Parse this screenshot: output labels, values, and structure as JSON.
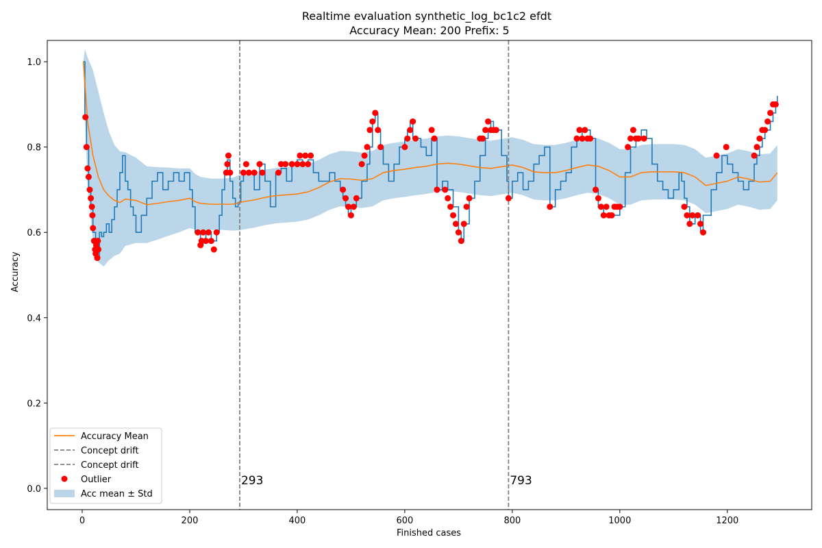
{
  "chart_data": {
    "type": "line",
    "title": "Realtime evaluation synthetic_log_bc1c2 efdt",
    "subtitle": "Accuracy Mean: 200 Prefix: 5",
    "xlabel": "Finished cases",
    "ylabel": "Accuracy",
    "xlim": [
      -65,
      1357
    ],
    "ylim": [
      -0.05,
      1.05
    ],
    "xticks": [
      0,
      200,
      400,
      600,
      800,
      1000,
      1200
    ],
    "yticks": [
      0.0,
      0.2,
      0.4,
      0.6,
      0.8,
      1.0
    ],
    "xtick_labels": [
      "0",
      "200",
      "400",
      "600",
      "800",
      "1000",
      "1200"
    ],
    "ytick_labels": [
      "0.0",
      "0.2",
      "0.4",
      "0.6",
      "0.8",
      "1.0"
    ],
    "grid": false,
    "legend_position": "lower-left",
    "colors": {
      "accuracy": "#1f77b4",
      "mean": "#ff7f0e",
      "band": "#1f77b4",
      "drift": "#808080",
      "outlier": "#ff0000"
    },
    "legend": [
      {
        "label": "Accuracy Mean",
        "kind": "line",
        "color": "#ff7f0e"
      },
      {
        "label": "Concept drift",
        "kind": "dashed",
        "color": "#808080"
      },
      {
        "label": "Concept drift",
        "kind": "dashed",
        "color": "#808080"
      },
      {
        "label": "Outlier",
        "kind": "marker",
        "color": "#ff0000"
      },
      {
        "label": "Acc mean ± Std",
        "kind": "patch",
        "color": "#1f77b4"
      }
    ],
    "drifts": [
      {
        "x": 293,
        "label": "293"
      },
      {
        "x": 793,
        "label": "793"
      }
    ],
    "accuracy_series": {
      "x": [
        2,
        5,
        8,
        12,
        16,
        20,
        25,
        28,
        32,
        36,
        40,
        45,
        50,
        55,
        60,
        65,
        70,
        75,
        80,
        85,
        90,
        95,
        100,
        110,
        120,
        130,
        140,
        150,
        160,
        170,
        180,
        190,
        200,
        205,
        210,
        215,
        220,
        225,
        230,
        235,
        240,
        245,
        250,
        255,
        260,
        265,
        270,
        275,
        280,
        285,
        290,
        295,
        300,
        310,
        320,
        330,
        340,
        350,
        360,
        370,
        380,
        390,
        400,
        410,
        420,
        430,
        440,
        450,
        460,
        470,
        480,
        485,
        490,
        495,
        500,
        510,
        520,
        530,
        535,
        540,
        545,
        550,
        555,
        560,
        570,
        580,
        590,
        600,
        605,
        610,
        615,
        620,
        630,
        640,
        650,
        655,
        660,
        670,
        680,
        690,
        700,
        705,
        710,
        720,
        730,
        740,
        750,
        755,
        760,
        765,
        770,
        780,
        790,
        793,
        800,
        810,
        820,
        830,
        840,
        850,
        860,
        870,
        880,
        890,
        900,
        910,
        920,
        930,
        940,
        945,
        950,
        955,
        960,
        970,
        980,
        990,
        1000,
        1010,
        1020,
        1030,
        1040,
        1050,
        1060,
        1070,
        1080,
        1090,
        1100,
        1110,
        1115,
        1120,
        1125,
        1130,
        1140,
        1150,
        1155,
        1160,
        1170,
        1180,
        1190,
        1200,
        1210,
        1220,
        1230,
        1240,
        1250,
        1255,
        1260,
        1265,
        1270,
        1275,
        1280,
        1285,
        1290,
        1293
      ],
      "y": [
        1.0,
        0.87,
        0.8,
        0.7,
        0.66,
        0.6,
        0.56,
        0.54,
        0.6,
        0.59,
        0.6,
        0.62,
        0.6,
        0.63,
        0.66,
        0.7,
        0.74,
        0.78,
        0.72,
        0.7,
        0.66,
        0.64,
        0.6,
        0.64,
        0.68,
        0.72,
        0.74,
        0.7,
        0.72,
        0.74,
        0.72,
        0.74,
        0.7,
        0.66,
        0.6,
        0.6,
        0.57,
        0.58,
        0.6,
        0.6,
        0.58,
        0.58,
        0.6,
        0.64,
        0.7,
        0.74,
        0.77,
        0.72,
        0.68,
        0.66,
        0.67,
        0.72,
        0.74,
        0.74,
        0.7,
        0.76,
        0.72,
        0.66,
        0.74,
        0.75,
        0.72,
        0.76,
        0.77,
        0.76,
        0.77,
        0.74,
        0.72,
        0.72,
        0.74,
        0.72,
        0.7,
        0.68,
        0.66,
        0.64,
        0.66,
        0.68,
        0.72,
        0.76,
        0.8,
        0.86,
        0.88,
        0.84,
        0.8,
        0.76,
        0.72,
        0.76,
        0.8,
        0.82,
        0.84,
        0.86,
        0.82,
        0.82,
        0.8,
        0.78,
        0.82,
        0.82,
        0.7,
        0.72,
        0.7,
        0.66,
        0.6,
        0.58,
        0.62,
        0.68,
        0.72,
        0.78,
        0.82,
        0.84,
        0.86,
        0.84,
        0.84,
        0.78,
        0.72,
        0.68,
        0.72,
        0.74,
        0.7,
        0.72,
        0.76,
        0.78,
        0.8,
        0.66,
        0.7,
        0.72,
        0.74,
        0.8,
        0.82,
        0.84,
        0.84,
        0.82,
        0.82,
        0.7,
        0.66,
        0.64,
        0.64,
        0.64,
        0.66,
        0.74,
        0.8,
        0.82,
        0.84,
        0.82,
        0.76,
        0.72,
        0.7,
        0.68,
        0.7,
        0.74,
        0.72,
        0.68,
        0.66,
        0.62,
        0.64,
        0.6,
        0.64,
        0.64,
        0.7,
        0.74,
        0.78,
        0.76,
        0.74,
        0.72,
        0.7,
        0.72,
        0.76,
        0.78,
        0.8,
        0.82,
        0.84,
        0.84,
        0.86,
        0.88,
        0.9,
        0.92
      ]
    },
    "mean_series": {
      "x": [
        2,
        5,
        10,
        20,
        30,
        40,
        50,
        60,
        70,
        80,
        100,
        120,
        140,
        160,
        180,
        200,
        210,
        220,
        240,
        260,
        280,
        293,
        300,
        320,
        340,
        360,
        380,
        400,
        420,
        440,
        460,
        480,
        500,
        520,
        540,
        560,
        580,
        600,
        620,
        640,
        660,
        680,
        700,
        720,
        740,
        760,
        780,
        800,
        820,
        840,
        860,
        880,
        900,
        920,
        940,
        960,
        980,
        1000,
        1020,
        1040,
        1060,
        1080,
        1100,
        1120,
        1140,
        1160,
        1180,
        1200,
        1220,
        1240,
        1260,
        1280,
        1293
      ],
      "y": [
        1.0,
        0.95,
        0.86,
        0.78,
        0.73,
        0.7,
        0.685,
        0.675,
        0.67,
        0.678,
        0.675,
        0.665,
        0.668,
        0.672,
        0.675,
        0.68,
        0.672,
        0.668,
        0.666,
        0.666,
        0.666,
        0.67,
        0.672,
        0.676,
        0.682,
        0.686,
        0.688,
        0.69,
        0.695,
        0.705,
        0.718,
        0.726,
        0.725,
        0.722,
        0.726,
        0.74,
        0.745,
        0.748,
        0.752,
        0.755,
        0.76,
        0.762,
        0.76,
        0.756,
        0.752,
        0.75,
        0.754,
        0.758,
        0.752,
        0.742,
        0.74,
        0.74,
        0.745,
        0.752,
        0.758,
        0.755,
        0.745,
        0.73,
        0.73,
        0.74,
        0.742,
        0.742,
        0.742,
        0.74,
        0.73,
        0.71,
        0.715,
        0.72,
        0.73,
        0.725,
        0.718,
        0.72,
        0.74
      ]
    },
    "band_std": [
      0.0,
      0.08,
      0.15,
      0.2,
      0.2,
      0.18,
      0.15,
      0.13,
      0.12,
      0.11,
      0.1,
      0.09,
      0.085,
      0.08,
      0.075,
      0.07,
      0.065,
      0.062,
      0.06,
      0.06,
      0.062,
      0.065,
      0.065,
      0.065,
      0.065,
      0.065,
      0.065,
      0.065,
      0.065,
      0.065,
      0.065,
      0.065,
      0.065,
      0.065,
      0.065,
      0.065,
      0.065,
      0.065,
      0.065,
      0.065,
      0.065,
      0.065,
      0.065,
      0.065,
      0.065,
      0.065,
      0.065,
      0.065,
      0.065,
      0.065,
      0.065,
      0.065,
      0.065,
      0.065,
      0.065,
      0.065,
      0.065,
      0.065,
      0.065,
      0.065,
      0.065,
      0.065,
      0.065,
      0.065,
      0.065,
      0.065,
      0.065,
      0.065,
      0.065,
      0.065,
      0.065,
      0.065,
      0.065
    ],
    "outliers": {
      "x": [
        6,
        8,
        10,
        12,
        14,
        16,
        18,
        19,
        20,
        22,
        24,
        25,
        26,
        28,
        29,
        30,
        215,
        220,
        222,
        225,
        230,
        235,
        240,
        245,
        250,
        268,
        270,
        272,
        275,
        300,
        305,
        310,
        320,
        330,
        335,
        365,
        370,
        378,
        390,
        400,
        405,
        410,
        415,
        420,
        425,
        485,
        490,
        495,
        500,
        505,
        510,
        520,
        525,
        530,
        535,
        540,
        545,
        550,
        555,
        600,
        605,
        610,
        615,
        620,
        650,
        655,
        660,
        675,
        680,
        685,
        690,
        695,
        700,
        705,
        710,
        715,
        720,
        740,
        745,
        750,
        755,
        760,
        765,
        770,
        793,
        870,
        920,
        925,
        930,
        935,
        940,
        945,
        955,
        960,
        965,
        970,
        975,
        980,
        985,
        990,
        995,
        1000,
        1015,
        1020,
        1025,
        1030,
        1035,
        1045,
        1120,
        1125,
        1130,
        1135,
        1145,
        1150,
        1155,
        1180,
        1198,
        1250,
        1255,
        1260,
        1265,
        1270,
        1275,
        1280,
        1285,
        1290
      ],
      "y": [
        0.87,
        0.8,
        0.75,
        0.73,
        0.7,
        0.68,
        0.66,
        0.64,
        0.61,
        0.58,
        0.56,
        0.55,
        0.57,
        0.54,
        0.58,
        0.56,
        0.6,
        0.57,
        0.58,
        0.6,
        0.58,
        0.6,
        0.58,
        0.56,
        0.6,
        0.74,
        0.76,
        0.78,
        0.74,
        0.74,
        0.76,
        0.74,
        0.74,
        0.76,
        0.74,
        0.74,
        0.76,
        0.76,
        0.76,
        0.76,
        0.78,
        0.76,
        0.78,
        0.76,
        0.78,
        0.7,
        0.68,
        0.66,
        0.64,
        0.66,
        0.68,
        0.76,
        0.78,
        0.8,
        0.84,
        0.86,
        0.88,
        0.84,
        0.8,
        0.8,
        0.82,
        0.84,
        0.86,
        0.82,
        0.84,
        0.82,
        0.7,
        0.7,
        0.68,
        0.66,
        0.64,
        0.62,
        0.6,
        0.58,
        0.62,
        0.66,
        0.68,
        0.82,
        0.82,
        0.84,
        0.86,
        0.84,
        0.84,
        0.84,
        0.68,
        0.66,
        0.82,
        0.84,
        0.82,
        0.84,
        0.82,
        0.82,
        0.7,
        0.68,
        0.66,
        0.64,
        0.66,
        0.64,
        0.64,
        0.66,
        0.66,
        0.66,
        0.8,
        0.82,
        0.84,
        0.82,
        0.82,
        0.82,
        0.66,
        0.64,
        0.62,
        0.64,
        0.64,
        0.62,
        0.6,
        0.78,
        0.8,
        0.78,
        0.8,
        0.82,
        0.84,
        0.84,
        0.86,
        0.88,
        0.9,
        0.9
      ]
    }
  }
}
